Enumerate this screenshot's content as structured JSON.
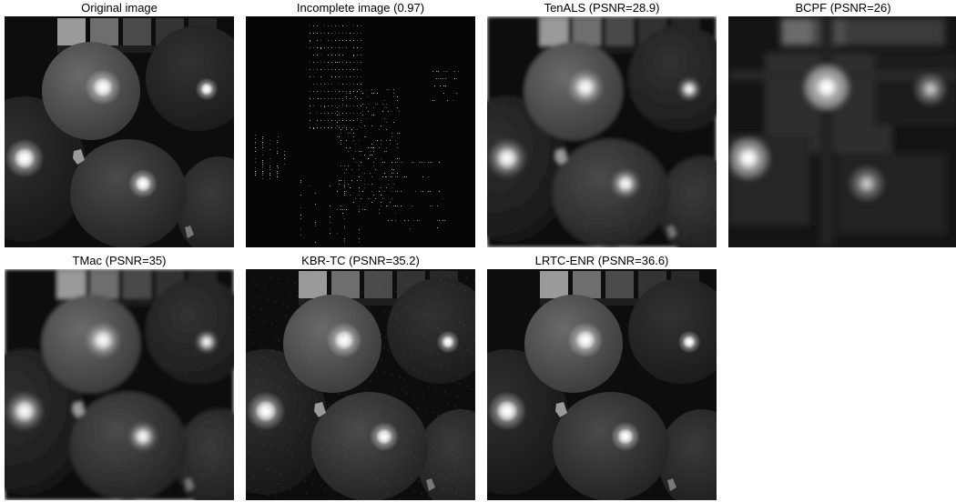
{
  "panels": [
    {
      "title": "Original image",
      "variant": "original"
    },
    {
      "title": "Incomplete image (0.97)",
      "variant": "incomplete"
    },
    {
      "title": "TenALS (PSNR=28.9)",
      "variant": "tenals"
    },
    {
      "title": "BCPF (PSNR=26)",
      "variant": "bcpf"
    },
    {
      "title": "TMac (PSNR=35)",
      "variant": "tmac"
    },
    {
      "title": "KBR-TC (PSNR=35.2)",
      "variant": "kbrtc"
    },
    {
      "title": "LRTC-ENR (PSNR=36.6)",
      "variant": "lrtcenr"
    }
  ]
}
